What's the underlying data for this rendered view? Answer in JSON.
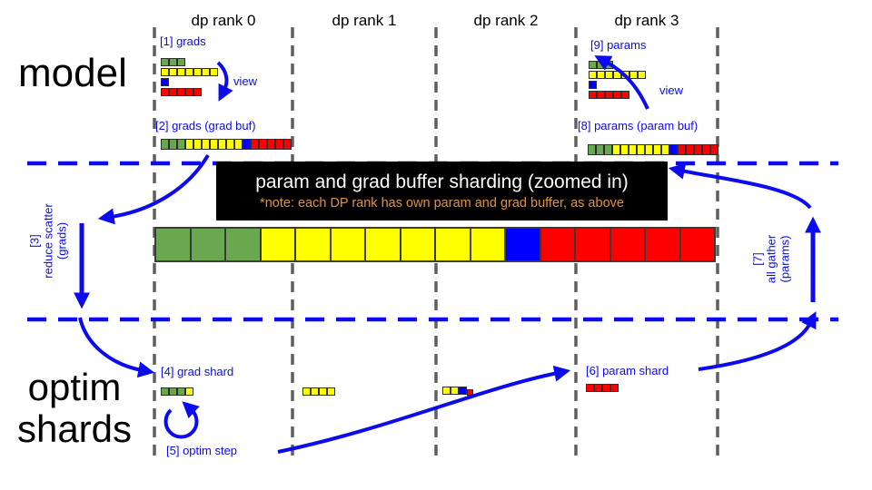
{
  "columns": [
    {
      "label": "dp rank 0"
    },
    {
      "label": "dp rank 1"
    },
    {
      "label": "dp rank 2"
    },
    {
      "label": "dp rank 3"
    }
  ],
  "sections": {
    "model": "model",
    "optim": "optim shards"
  },
  "banner": {
    "title": "param and grad buffer sharding (zoomed in)",
    "note": "*note: each DP rank has own param and grad buffer, as above"
  },
  "labels": {
    "step1": "[1] grads",
    "step2": "[2] grads (grad buf)",
    "step3": [
      "[3]",
      "reduce scatter",
      "(grads)"
    ],
    "step4": "[4] grad shard",
    "step5": "[5] optim step",
    "step6": "[6] param shard",
    "step7": [
      "[7]",
      "all gather",
      "(params)"
    ],
    "step8": "[8] params (param buf)",
    "step9": "[9] params",
    "view_rank0": "view",
    "view_rank3": "view"
  },
  "colors": {
    "green": "#6aa84f",
    "yellow": "#ffff00",
    "blue": "#0000ff",
    "red": "#ff0000",
    "arrow": "#0b0bee",
    "grid": "#606060",
    "note_orange": "#e69138",
    "banner_bg": "#000000",
    "banner_title": "#ffffff"
  },
  "bars": {
    "tensor_rows": [
      [
        {
          "color": "green",
          "n": 3
        }
      ],
      [
        {
          "color": "yellow",
          "n": 7
        }
      ],
      [
        {
          "color": "blue",
          "n": 1
        }
      ],
      [
        {
          "color": "red",
          "n": 5
        }
      ]
    ],
    "flat_buffer": [
      {
        "color": "green",
        "n": 3
      },
      {
        "color": "yellow",
        "n": 7
      },
      {
        "color": "blue",
        "n": 1
      },
      {
        "color": "red",
        "n": 5
      }
    ],
    "shard_rank0": [
      {
        "color": "green",
        "n": 3
      },
      {
        "color": "yellow",
        "n": 1
      }
    ],
    "shard_rank1": [
      {
        "color": "yellow",
        "n": 4
      }
    ],
    "shard_rank2": [
      {
        "color": "yellow",
        "n": 2
      },
      {
        "color": "blue",
        "n": 1
      },
      {
        "color": "red",
        "n": 1,
        "small": true
      }
    ],
    "shard_rank3": [
      {
        "color": "red",
        "n": 4
      }
    ]
  }
}
